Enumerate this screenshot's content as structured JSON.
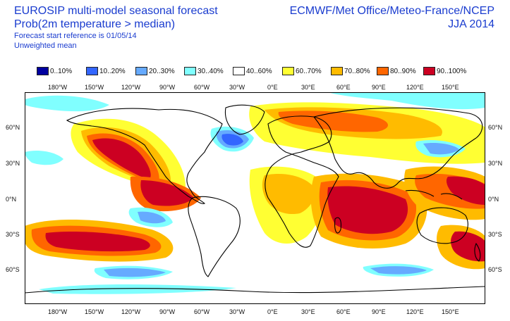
{
  "header": {
    "title": "EUROSIP multi-model seasonal forecast",
    "subtitle": "Prob(2m temperature > median)",
    "start_ref": "Forecast start reference is 01/05/14",
    "mean_type": "Unweighted mean",
    "centres": "ECMWF/Met Office/Meteo-France/NCEP",
    "season": "JJA 2014"
  },
  "legend": [
    {
      "label": "0..10%",
      "color": "#0000a0"
    },
    {
      "label": "10..20%",
      "color": "#3366ff"
    },
    {
      "label": "20..30%",
      "color": "#66aaff"
    },
    {
      "label": "30..40%",
      "color": "#80ffff"
    },
    {
      "label": "40..60%",
      "color": "#ffffff"
    },
    {
      "label": "60..70%",
      "color": "#ffff33"
    },
    {
      "label": "70..80%",
      "color": "#ffbb00"
    },
    {
      "label": "80..90%",
      "color": "#ff6600"
    },
    {
      "label": "90..100%",
      "color": "#cc0022"
    }
  ],
  "axes": {
    "lon_top": [
      "180°W",
      "150°W",
      "120°W",
      "90°W",
      "60°W",
      "30°W",
      "0°E",
      "30°E",
      "60°E",
      "90°E",
      "120°E",
      "150°E"
    ],
    "lon_bottom": [
      "180°W",
      "150°W",
      "120°W",
      "90°W",
      "60°W",
      "30°W",
      "0°E",
      "30°E",
      "60°E",
      "90°E",
      "120°E",
      "150°E"
    ],
    "lat_left": [
      "60°N",
      "30°N",
      "0°N",
      "30°S",
      "60°S"
    ],
    "lat_right": [
      "60°N",
      "30°N",
      "0°N",
      "30°S",
      "60°S"
    ]
  },
  "map": {
    "projection": "cylindrical",
    "field": "probability of 2m temperature above median"
  }
}
